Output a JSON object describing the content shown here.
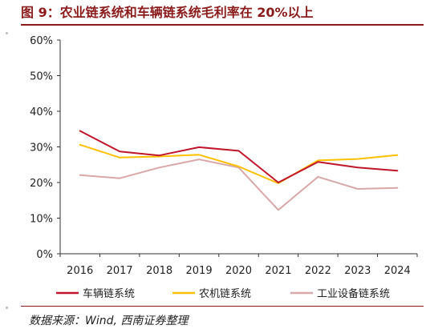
{
  "figure": {
    "title": "图 9：农业链系统和车辆链系统毛利率在 20%以上",
    "source": "数据来源：Wind, 西南证券整理"
  },
  "chart_data": {
    "type": "line",
    "categories": [
      "2016",
      "2017",
      "2018",
      "2019",
      "2020",
      "2021",
      "2022",
      "2023",
      "2024"
    ],
    "ylim": [
      0,
      60
    ],
    "yticks": [
      "0%",
      "10%",
      "20%",
      "30%",
      "40%",
      "50%",
      "60%"
    ],
    "grid": false,
    "legend_position": "bottom",
    "series": [
      {
        "name": "车辆链系统",
        "color": "#c0152a",
        "values": [
          34.5,
          28.7,
          27.6,
          29.9,
          28.9,
          20.0,
          25.8,
          24.2,
          23.3
        ]
      },
      {
        "name": "农机链系统",
        "color": "#ffc000",
        "values": [
          30.6,
          27.0,
          27.3,
          27.8,
          24.5,
          19.8,
          26.2,
          26.6,
          27.7
        ]
      },
      {
        "name": "工业设备链系统",
        "color": "#d8a8a8",
        "values": [
          22.1,
          21.2,
          24.2,
          26.5,
          24.2,
          12.3,
          21.6,
          18.2,
          18.5
        ]
      }
    ]
  }
}
